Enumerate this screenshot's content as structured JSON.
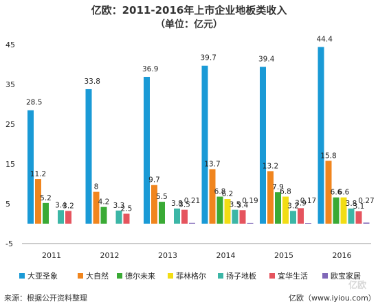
{
  "chart_data": {
    "type": "bar",
    "title": "亿欧：2011-2016年上市企业地板类收入",
    "subtitle": "（单位：亿元）",
    "categories": [
      "2011",
      "2012",
      "2013",
      "2014",
      "2015",
      "2016"
    ],
    "y_ticks": [
      "-5",
      "5",
      "15",
      "25",
      "35",
      "45"
    ],
    "ylim": [
      -5,
      45
    ],
    "grid": false,
    "legend_position": "bottom",
    "series": [
      {
        "name": "大亚圣象",
        "color": "#1a9ad6",
        "values": [
          28.5,
          33.8,
          36.9,
          39.7,
          39.4,
          44.4
        ],
        "labels": [
          "28.5",
          "33.8",
          "36.9",
          "39.7",
          "39.4",
          "44.4"
        ]
      },
      {
        "name": "大自然",
        "color": "#f0851e",
        "values": [
          11.2,
          8,
          9.7,
          13.7,
          13.2,
          15.8
        ],
        "labels": [
          "11.2",
          "8",
          "9.7",
          "13.7",
          "13.2",
          "15.8"
        ]
      },
      {
        "name": "德尔未来",
        "color": "#3aaa35",
        "values": [
          5.2,
          4.2,
          5.5,
          6.8,
          7.9,
          6.6
        ],
        "labels": [
          "5.2",
          "4.2",
          "5.5",
          "6.8",
          "7.9",
          "6.6"
        ]
      },
      {
        "name": "菲林格尔",
        "color": "#f2dd14",
        "values": [
          null,
          null,
          null,
          6.2,
          6.8,
          6.6
        ],
        "labels": [
          "",
          "",
          "",
          "6.2",
          "6.8",
          "6.6"
        ]
      },
      {
        "name": "扬子地板",
        "color": "#3cb6a6",
        "values": [
          3.4,
          3.3,
          3.8,
          3.5,
          3.2,
          3.8
        ],
        "labels": [
          "3.4",
          "3.3",
          "3.8",
          "3.5",
          "3.2",
          "3.8"
        ]
      },
      {
        "name": "宜华生活",
        "color": "#e5545e",
        "values": [
          3.2,
          2.5,
          3.5,
          3.4,
          3.9,
          3.1
        ],
        "labels": [
          "3.2",
          "2.5",
          "3.5",
          "3.4",
          "3.9",
          "3.1"
        ]
      },
      {
        "name": "欧宝家居",
        "color": "#8068b8",
        "values": [
          null,
          null,
          0.21,
          0.19,
          0.17,
          0.27
        ],
        "labels": [
          "",
          "",
          "0.21",
          "0.19",
          "0.17",
          "0.27"
        ]
      }
    ]
  },
  "footer": {
    "source": "来源：根据公开资料整理",
    "credit": "亿欧（www.iyiou.com）",
    "watermark": "亿欧"
  }
}
